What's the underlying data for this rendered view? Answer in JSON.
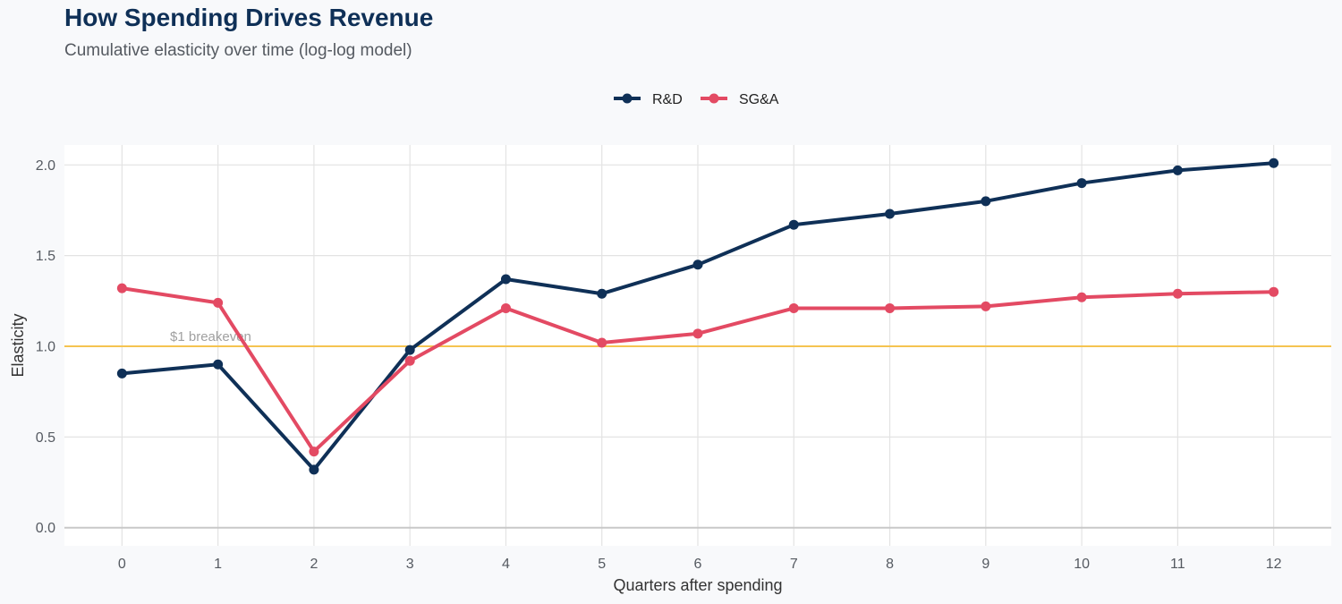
{
  "chart_data": {
    "type": "line",
    "title": "How Spending Drives Revenue",
    "subtitle": "Cumulative elasticity over time (log-log model)",
    "xlabel": "Quarters after spending",
    "ylabel": "Elasticity",
    "x": [
      0,
      1,
      2,
      3,
      4,
      5,
      6,
      7,
      8,
      9,
      10,
      11,
      12
    ],
    "xlim": [
      -0.6,
      12.6
    ],
    "ylim": [
      -0.1,
      2.11
    ],
    "yticks": [
      0.0,
      0.5,
      1.0,
      1.5,
      2.0
    ],
    "ytick_labels": [
      "0.0",
      "0.5",
      "1.0",
      "1.5",
      "2.0"
    ],
    "xtick_labels": [
      "0",
      "1",
      "2",
      "3",
      "4",
      "5",
      "6",
      "7",
      "8",
      "9",
      "10",
      "11",
      "12"
    ],
    "grid": true,
    "legend_position": "top-center",
    "series": [
      {
        "name": "R&D",
        "color": "#0f3057",
        "values": [
          0.85,
          0.9,
          0.32,
          0.98,
          1.37,
          1.29,
          1.45,
          1.67,
          1.73,
          1.8,
          1.9,
          1.97,
          2.01
        ]
      },
      {
        "name": "SG&A",
        "color": "#e34a63",
        "values": [
          1.32,
          1.24,
          0.42,
          0.92,
          1.21,
          1.02,
          1.07,
          1.21,
          1.21,
          1.22,
          1.27,
          1.29,
          1.3
        ]
      }
    ],
    "reference_line": {
      "y": 1.0,
      "label": "$1 breakeven",
      "label_x": 0.5,
      "color": "#f5c451"
    },
    "colors": {
      "background": "#f8f9fb",
      "panel": "#ffffff",
      "grid": "#e3e3e3",
      "axis_text": "#555a61"
    }
  }
}
